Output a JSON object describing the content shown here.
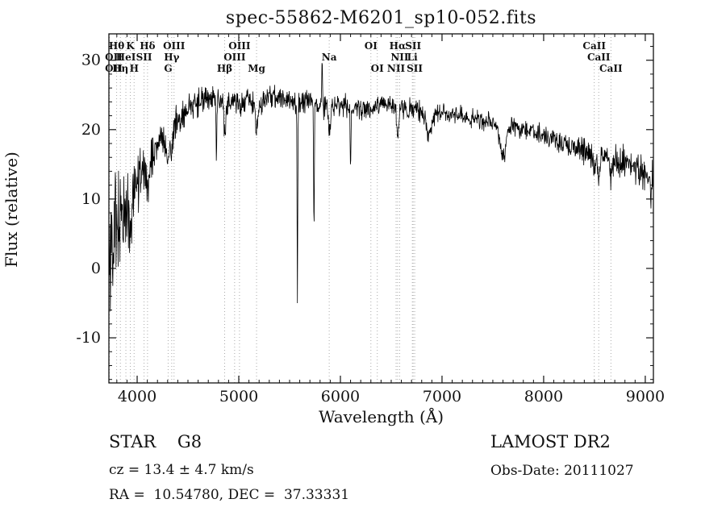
{
  "chart_data": {
    "type": "line",
    "title": "spec-55862-M6201_sp10-052.fits",
    "xlabel": "Wavelength (Å)",
    "ylabel": "Flux (relative)",
    "xlim": [
      3722,
      9080
    ],
    "ylim": [
      -16.5,
      33.8
    ],
    "xticks": [
      4000,
      5000,
      6000,
      7000,
      8000,
      9000
    ],
    "yticks": [
      -10,
      0,
      10,
      20,
      30
    ],
    "x_minor_step": 100,
    "y_minor_step": 2,
    "grid": "dotted-vertical-at-line-markers",
    "legend": "none",
    "line_color": "#000000",
    "marker_line_color": "#aaaaaa",
    "continuum": [
      [
        3722,
        1
      ],
      [
        3760,
        4
      ],
      [
        3800,
        6
      ],
      [
        3850,
        7.5
      ],
      [
        3900,
        9
      ],
      [
        3950,
        11
      ],
      [
        4000,
        13
      ],
      [
        4050,
        14
      ],
      [
        4100,
        14.5
      ],
      [
        4150,
        16
      ],
      [
        4200,
        17.5
      ],
      [
        4250,
        18.5
      ],
      [
        4300,
        19
      ],
      [
        4350,
        20.5
      ],
      [
        4400,
        21.5
      ],
      [
        4500,
        23
      ],
      [
        4600,
        24
      ],
      [
        4700,
        24.5
      ],
      [
        4800,
        24
      ],
      [
        4900,
        23.5
      ],
      [
        5000,
        24
      ],
      [
        5100,
        24
      ],
      [
        5200,
        23.5
      ],
      [
        5300,
        24.5
      ],
      [
        5400,
        24.5
      ],
      [
        5500,
        24
      ],
      [
        5600,
        24
      ],
      [
        5700,
        24
      ],
      [
        5800,
        23.5
      ],
      [
        5900,
        23.5
      ],
      [
        6000,
        23.5
      ],
      [
        6100,
        23
      ],
      [
        6200,
        23
      ],
      [
        6300,
        23
      ],
      [
        6400,
        23.5
      ],
      [
        6500,
        23.5
      ],
      [
        6600,
        23
      ],
      [
        6700,
        23
      ],
      [
        6800,
        22.5
      ],
      [
        6900,
        22
      ],
      [
        7000,
        22.5
      ],
      [
        7100,
        22
      ],
      [
        7200,
        22
      ],
      [
        7300,
        21.5
      ],
      [
        7400,
        21.5
      ],
      [
        7500,
        21
      ],
      [
        7600,
        20.5
      ],
      [
        7700,
        20.5
      ],
      [
        7800,
        20
      ],
      [
        7900,
        19.5
      ],
      [
        8000,
        19
      ],
      [
        8100,
        18.5
      ],
      [
        8200,
        18
      ],
      [
        8300,
        17.5
      ],
      [
        8400,
        17
      ],
      [
        8500,
        16.5
      ],
      [
        8600,
        16
      ],
      [
        8700,
        15.5
      ],
      [
        8800,
        15
      ],
      [
        8900,
        14.5
      ],
      [
        9000,
        14
      ],
      [
        9080,
        13
      ]
    ],
    "noise_amplitude": [
      [
        3722,
        10
      ],
      [
        3780,
        8
      ],
      [
        3850,
        6.5
      ],
      [
        3900,
        5.5
      ],
      [
        3950,
        4.5
      ],
      [
        4000,
        3.8
      ],
      [
        4100,
        3.2
      ],
      [
        4200,
        2.8
      ],
      [
        4400,
        2.4
      ],
      [
        4700,
        2.2
      ],
      [
        5000,
        1.8
      ],
      [
        5500,
        1.6
      ],
      [
        6000,
        1.5
      ],
      [
        6500,
        1.4
      ],
      [
        7000,
        1.3
      ],
      [
        7500,
        1.3
      ],
      [
        8000,
        1.5
      ],
      [
        8500,
        1.8
      ],
      [
        8800,
        2.2
      ],
      [
        9080,
        2.6
      ]
    ],
    "absorption_features": [
      {
        "x": 3933,
        "depth": 5,
        "width": 12
      },
      {
        "x": 4102,
        "depth": 4,
        "width": 12
      },
      {
        "x": 4305,
        "depth": 3.5,
        "width": 15
      },
      {
        "x": 4340,
        "depth": 3,
        "width": 10
      },
      {
        "x": 4861,
        "depth": 4,
        "width": 10
      },
      {
        "x": 5175,
        "depth": 3,
        "width": 15
      },
      {
        "x": 5890,
        "depth": 4,
        "width": 10
      },
      {
        "x": 6563,
        "depth": 4.5,
        "width": 10
      },
      {
        "x": 6870,
        "depth": 3.5,
        "width": 20
      },
      {
        "x": 7600,
        "depth": 4.5,
        "width": 25
      },
      {
        "x": 8498,
        "depth": 3,
        "width": 10
      },
      {
        "x": 8542,
        "depth": 3.5,
        "width": 10
      },
      {
        "x": 8662,
        "depth": 3,
        "width": 10
      }
    ],
    "narrow_spikes": [
      {
        "x": 4780,
        "y": 14
      },
      {
        "x": 5577,
        "y": -5
      },
      {
        "x": 5740,
        "y": 3
      },
      {
        "x": 5820,
        "y": 31
      },
      {
        "x": 6100,
        "y": 13
      },
      {
        "x": 9055,
        "y": 8
      }
    ],
    "line_markers": [
      {
        "x": 3798,
        "label": "Hθ",
        "row": 0
      },
      {
        "x": 3933,
        "label": "K",
        "row": 0
      },
      {
        "x": 4102,
        "label": "Hδ",
        "row": 0
      },
      {
        "x": 4363,
        "label": "OIII",
        "row": 0
      },
      {
        "x": 5007,
        "label": "OIII",
        "row": 0
      },
      {
        "x": 6300,
        "label": "OI",
        "row": 0
      },
      {
        "x": 6563,
        "label": "Hα",
        "row": 0
      },
      {
        "x": 6716,
        "label": "SII",
        "row": 0
      },
      {
        "x": 8498,
        "label": "CaII",
        "row": 0
      },
      {
        "x": 3722,
        "label": "OII",
        "row": 1
      },
      {
        "x": 3889,
        "label": "HeI",
        "row": 1
      },
      {
        "x": 4068,
        "label": "SII",
        "row": 1
      },
      {
        "x": 4340,
        "label": "Hγ",
        "row": 1
      },
      {
        "x": 4959,
        "label": "OIII",
        "row": 1
      },
      {
        "x": 5890,
        "label": "Na",
        "row": 1
      },
      {
        "x": 6583,
        "label": "NII",
        "row": 1
      },
      {
        "x": 6708,
        "label": "Li",
        "row": 1
      },
      {
        "x": 8542,
        "label": "CaII",
        "row": 1
      },
      {
        "x": 3727,
        "label": "OII",
        "row": 2
      },
      {
        "x": 3835,
        "label": "Hη",
        "row": 2
      },
      {
        "x": 3970,
        "label": "H",
        "row": 2
      },
      {
        "x": 4305,
        "label": "G",
        "row": 2
      },
      {
        "x": 4861,
        "label": "Hβ",
        "row": 2
      },
      {
        "x": 5175,
        "label": "Mg",
        "row": 2
      },
      {
        "x": 6363,
        "label": "OI",
        "row": 2
      },
      {
        "x": 6548,
        "label": "NII",
        "row": 2
      },
      {
        "x": 6731,
        "label": "SII",
        "row": 2
      },
      {
        "x": 8662,
        "label": "CaII",
        "row": 2
      }
    ]
  },
  "annotations": {
    "classification": "STAR    G8",
    "survey": "LAMOST DR2",
    "cz_line": "cz = 13.4 ± 4.7 km/s",
    "obs_date": "Obs-Date: 20111027",
    "radec_line": "RA =  10.54780, DEC =  37.33331"
  }
}
